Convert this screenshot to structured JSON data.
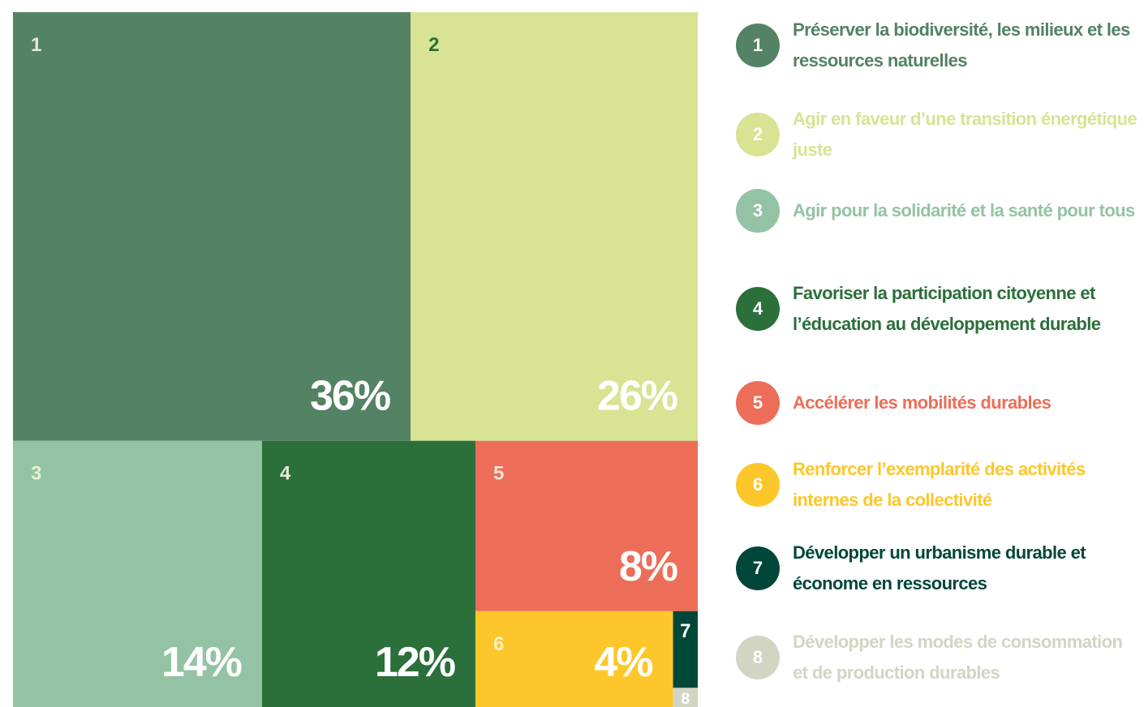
{
  "chart_data": {
    "type": "treemap",
    "categories": [
      "1",
      "2",
      "3",
      "4",
      "5",
      "6",
      "7",
      "8"
    ],
    "labels": [
      "Préserver la biodiversité, les milieux et les ressources naturelles",
      "Agir en faveur d’une transition énergétique juste",
      "Agir pour la solidarité et la santé pour tous",
      "Favoriser la participation citoyenne et l’éducation au développement durable",
      "Accélérer les mobilités durables",
      "Renforcer l’exemplarité des activités internes de la collectivité",
      "Développer un urbanisme durable et économe en ressources",
      "Développer les modes de consommation et de production durables"
    ],
    "values": [
      36,
      26,
      14,
      12,
      8,
      4,
      0.4,
      0.1
    ],
    "value_labels": [
      "36%",
      "26%",
      "14%",
      "12%",
      "8%",
      "4%",
      null,
      null
    ],
    "colors": [
      "#548264",
      "#d8e393",
      "#93c3a4",
      "#2b6f3a",
      "#ec6e58",
      "#fdc72b",
      "#00473a",
      "#d3d5c3"
    ],
    "number_colors": [
      "#e3ebd3",
      "#2b6f3a",
      "#e8efd3",
      "#e3ebd3",
      "#fbe3d6",
      "#fff1c4",
      "#ffffff",
      "#ffffff"
    ]
  }
}
